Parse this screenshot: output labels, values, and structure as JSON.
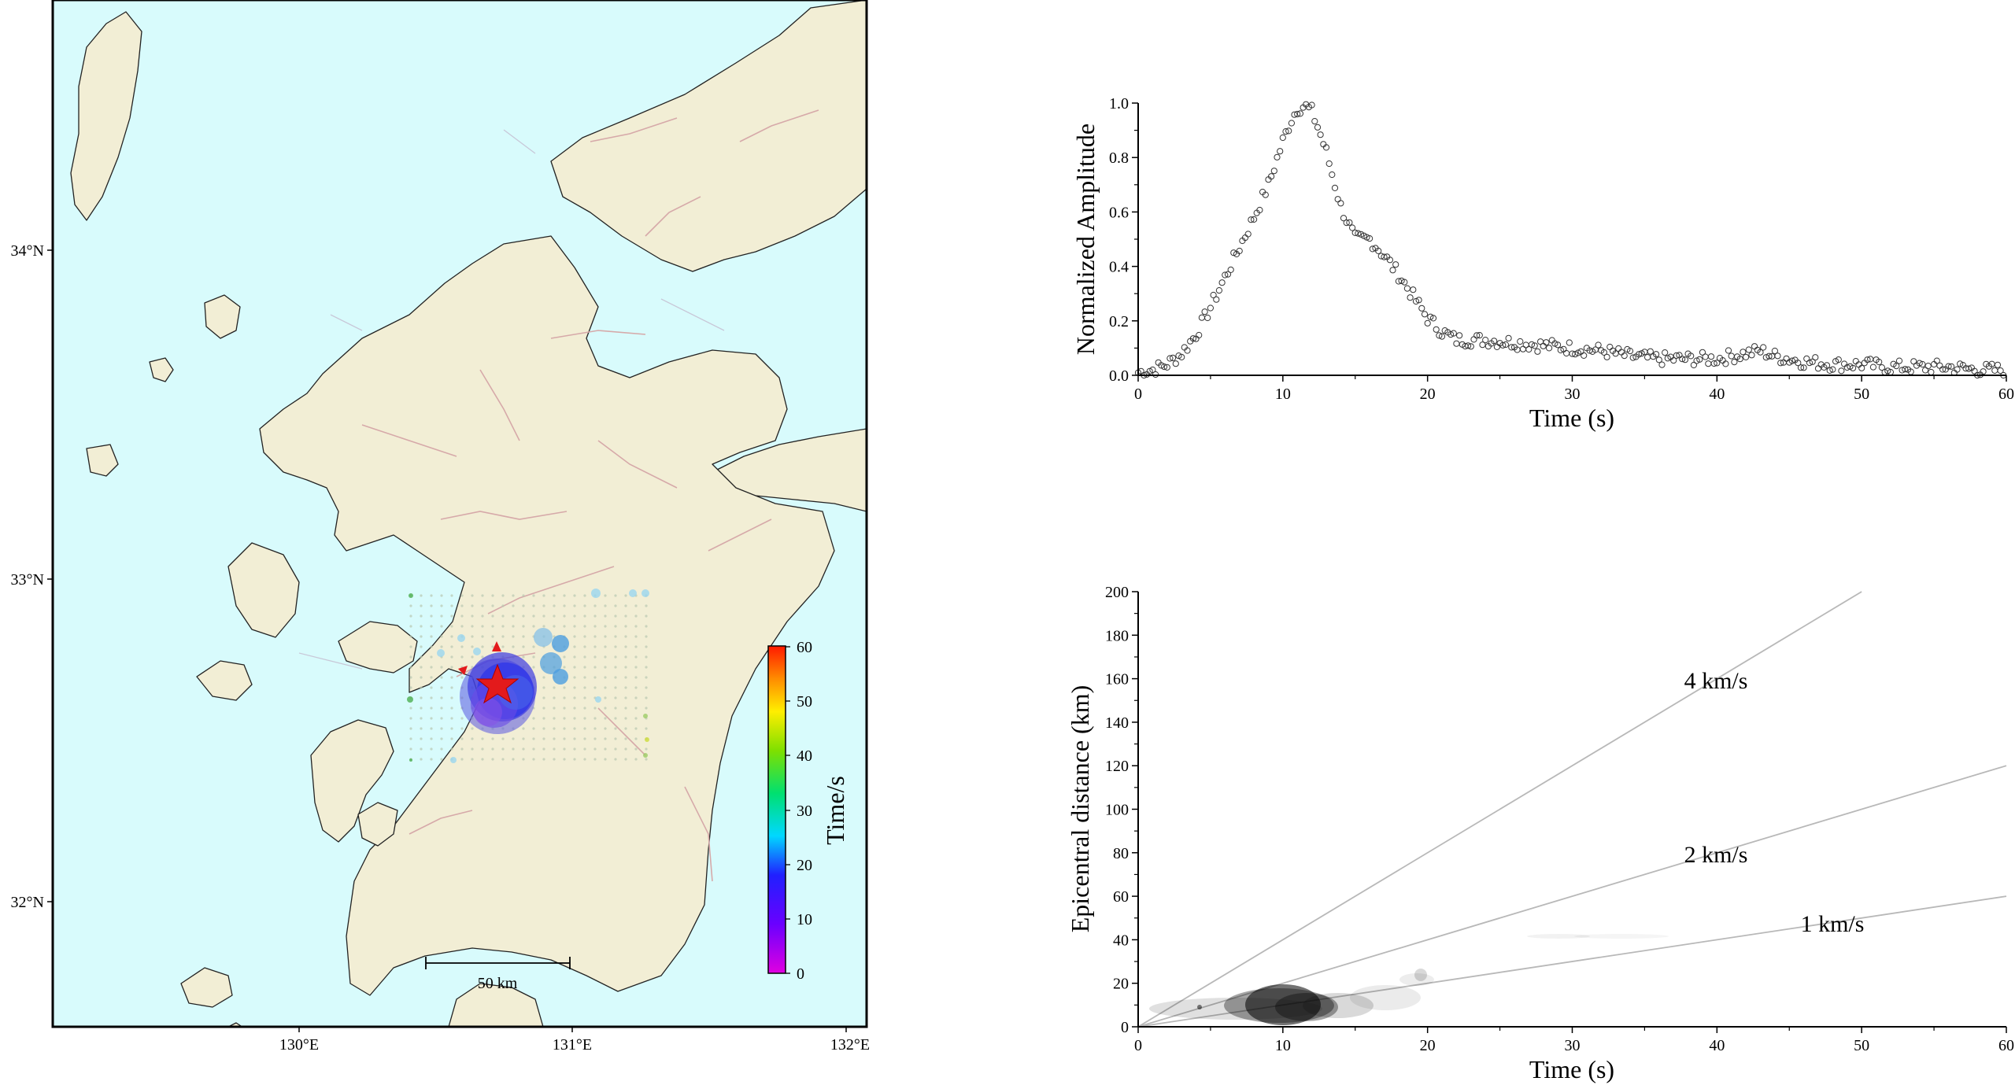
{
  "map": {
    "lon_labels": [
      "130°E",
      "131°E",
      "132°E"
    ],
    "lat_labels": [
      "34°N",
      "33°N",
      "32°N"
    ],
    "scale_bar_label": "50 km",
    "colorbar": {
      "label": "Time/s",
      "ticks": [
        "60",
        "50",
        "40",
        "30",
        "20",
        "10",
        "0"
      ],
      "range": [
        0,
        60
      ]
    },
    "colors": {
      "sea": "#d8fbfc",
      "land": "#f2eed5",
      "coast": "#222222",
      "fault": "#d6a9a9",
      "star": "#e31a1c"
    }
  },
  "chart_data": [
    {
      "type": "scatter",
      "xlabel": "Time (s)",
      "ylabel": "Normalized Amplitude",
      "xlim": [
        0,
        60
      ],
      "ylim": [
        0,
        1.0
      ],
      "x_ticks": [
        "0",
        "10",
        "20",
        "30",
        "40",
        "50",
        "60"
      ],
      "y_ticks": [
        "0.0",
        "0.2",
        "0.4",
        "0.6",
        "0.8",
        "1.0"
      ],
      "series": [
        {
          "x": [
            0,
            1,
            2,
            3,
            4,
            5,
            6,
            7,
            8,
            9,
            10,
            10.5,
            11,
            11.5,
            12,
            12.5,
            13,
            14,
            15,
            16,
            17,
            18,
            19,
            20,
            21,
            22,
            24,
            26,
            28,
            30,
            32,
            34,
            36,
            38,
            40,
            42,
            43,
            44,
            46,
            48,
            50,
            52,
            54,
            56,
            58,
            60
          ],
          "y": [
            0.01,
            0.02,
            0.04,
            0.08,
            0.15,
            0.25,
            0.36,
            0.47,
            0.58,
            0.7,
            0.86,
            0.93,
            0.98,
            0.99,
            0.97,
            0.9,
            0.82,
            0.62,
            0.5,
            0.5,
            0.44,
            0.37,
            0.29,
            0.21,
            0.16,
            0.13,
            0.13,
            0.12,
            0.11,
            0.1,
            0.09,
            0.07,
            0.06,
            0.06,
            0.06,
            0.08,
            0.09,
            0.07,
            0.05,
            0.04,
            0.04,
            0.03,
            0.03,
            0.03,
            0.02,
            0.02
          ]
        }
      ]
    },
    {
      "type": "scatter",
      "xlabel": "Time (s)",
      "ylabel": "Epicentral distance (km)",
      "xlim": [
        0,
        60
      ],
      "ylim": [
        0,
        200
      ],
      "x_ticks": [
        "0",
        "10",
        "20",
        "30",
        "40",
        "50",
        "60"
      ],
      "y_ticks": [
        "0",
        "20",
        "40",
        "60",
        "80",
        "100",
        "120",
        "140",
        "160",
        "180",
        "200"
      ],
      "reference_lines": [
        {
          "label": "4 km/s",
          "slope": 4
        },
        {
          "label": "2 km/s",
          "slope": 2
        },
        {
          "label": "1 km/s",
          "slope": 1
        }
      ]
    }
  ]
}
